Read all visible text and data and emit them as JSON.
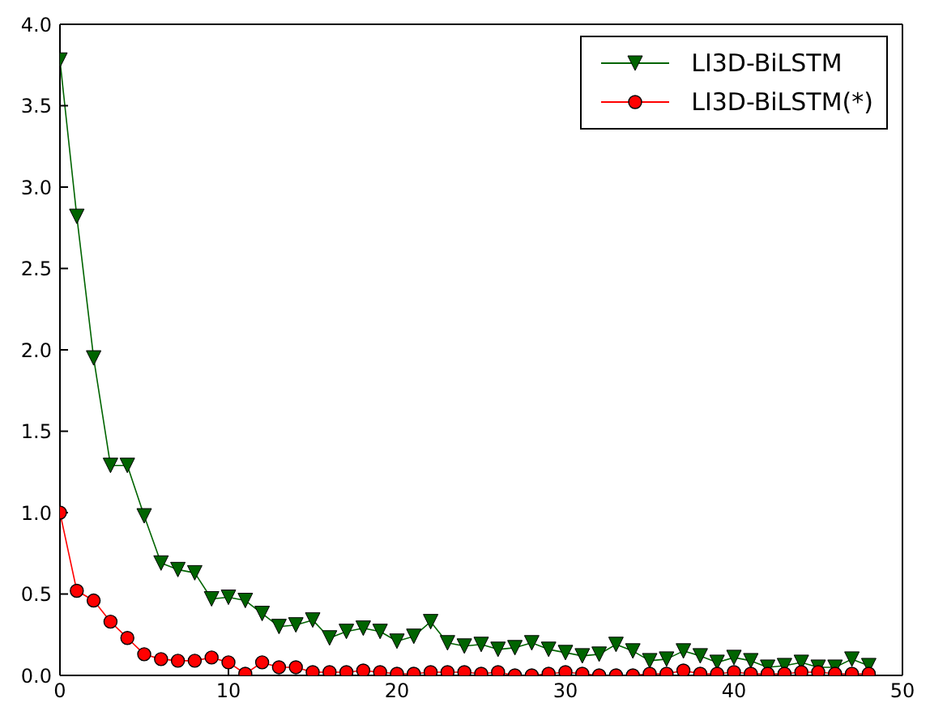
{
  "chart_data": {
    "type": "line",
    "x": [
      0,
      1,
      2,
      3,
      4,
      5,
      6,
      7,
      8,
      9,
      10,
      11,
      12,
      13,
      14,
      15,
      16,
      17,
      18,
      19,
      20,
      21,
      22,
      23,
      24,
      25,
      26,
      27,
      28,
      29,
      30,
      31,
      32,
      33,
      34,
      35,
      36,
      37,
      38,
      39,
      40,
      41,
      42,
      43,
      44,
      45,
      46,
      47,
      48
    ],
    "series": [
      {
        "name": "LI3D-BiLSTM",
        "color": "#006400",
        "marker": "triangle",
        "values": [
          3.78,
          2.82,
          1.95,
          1.29,
          1.29,
          0.98,
          0.69,
          0.65,
          0.63,
          0.47,
          0.48,
          0.46,
          0.38,
          0.3,
          0.31,
          0.34,
          0.23,
          0.27,
          0.29,
          0.27,
          0.21,
          0.24,
          0.33,
          0.2,
          0.18,
          0.19,
          0.16,
          0.17,
          0.2,
          0.16,
          0.14,
          0.12,
          0.13,
          0.19,
          0.15,
          0.09,
          0.1,
          0.15,
          0.12,
          0.08,
          0.11,
          0.09,
          0.05,
          0.06,
          0.08,
          0.05,
          0.05,
          0.1,
          0.06
        ]
      },
      {
        "name": "LI3D-BiLSTM(*)",
        "color": "#ff0000",
        "marker": "circle",
        "values": [
          1.0,
          0.52,
          0.46,
          0.33,
          0.23,
          0.13,
          0.1,
          0.09,
          0.09,
          0.11,
          0.08,
          0.01,
          0.08,
          0.05,
          0.05,
          0.02,
          0.02,
          0.02,
          0.03,
          0.02,
          0.01,
          0.01,
          0.02,
          0.02,
          0.02,
          0.01,
          0.02,
          0.0,
          0.0,
          0.01,
          0.02,
          0.01,
          0.0,
          0.0,
          0.0,
          0.01,
          0.01,
          0.03,
          0.01,
          0.01,
          0.02,
          0.01,
          0.01,
          0.01,
          0.02,
          0.02,
          0.01,
          0.01,
          0.01
        ]
      }
    ],
    "xlim": [
      0,
      50
    ],
    "xticks": [
      0,
      10,
      20,
      30,
      40,
      50
    ],
    "ylim": [
      0,
      4
    ],
    "yticks": [
      {
        "value": 0,
        "label": "0.0"
      },
      {
        "value": 0.5,
        "label": "0.5"
      },
      {
        "value": 1,
        "label": "1.0"
      },
      {
        "value": 1.5,
        "label": "1.5"
      },
      {
        "value": 2,
        "label": "2.0"
      },
      {
        "value": 2.5,
        "label": "2.5"
      },
      {
        "value": 3,
        "label": "3.0"
      },
      {
        "value": 3.5,
        "label": "3.5"
      },
      {
        "value": 4,
        "label": "4.0"
      }
    ],
    "grid": false,
    "legend": "top right"
  }
}
